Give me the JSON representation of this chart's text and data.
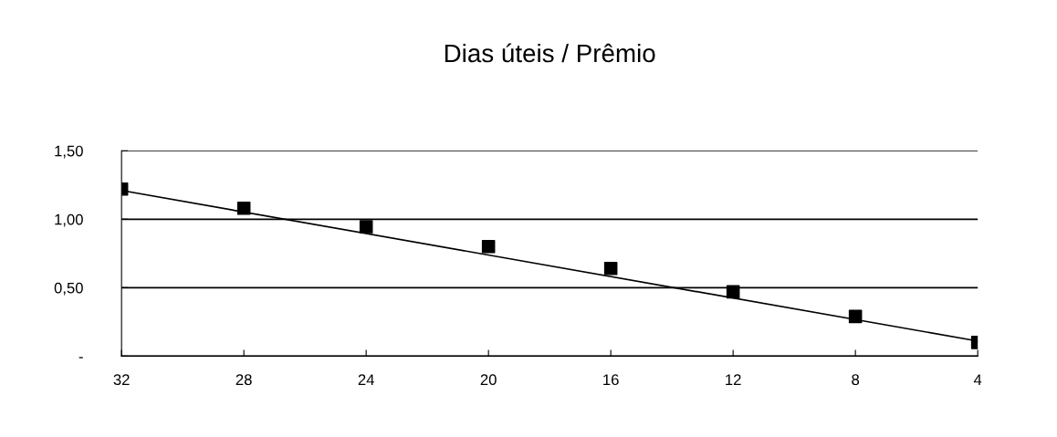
{
  "chart_data": {
    "type": "scatter",
    "title": "Dias úteis / Prêmio",
    "categories": [
      "32",
      "28",
      "24",
      "20",
      "16",
      "12",
      "8",
      "4"
    ],
    "series": [
      {
        "color": "#000000",
        "marker": "square",
        "values": [
          1.22,
          1.08,
          0.945,
          0.8,
          0.64,
          0.47,
          0.29,
          0.1
        ]
      },
      {
        "type": "line",
        "color": "#000000",
        "marker": "none",
        "line_style": "solid",
        "x": [
          "32",
          "4"
        ],
        "values": [
          1.21,
          0.11
        ]
      }
    ],
    "ylim": [
      0,
      1.5
    ],
    "yticks": [
      {
        "value": 0,
        "label": "-"
      },
      {
        "value": 0.5,
        "label": "0,50"
      },
      {
        "value": 1.0,
        "label": "1,00"
      },
      {
        "value": 1.5,
        "label": "1,50"
      }
    ],
    "grid": "y",
    "legend": false
  }
}
